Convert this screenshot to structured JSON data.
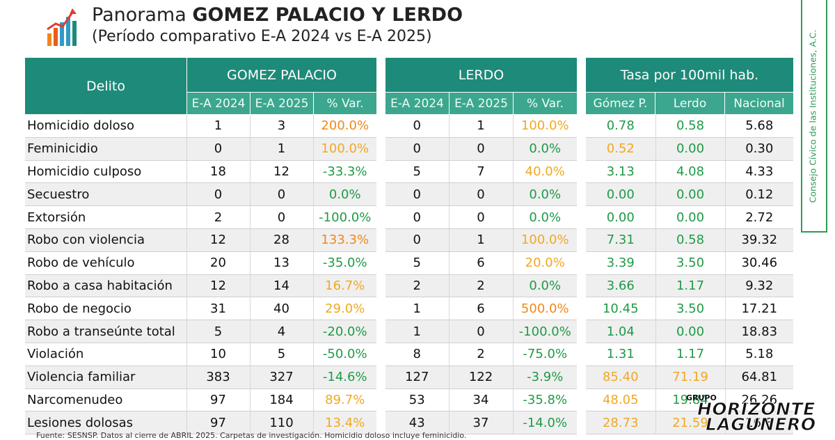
{
  "header": {
    "title_prefix": "Panorama",
    "title_bold": "GOMEZ PALACIO Y LERDO",
    "subtitle": "(Período comparativo E-A 2024 vs E-A 2025)"
  },
  "side_label": "Consejo Cívico de las Instituciones, A.C.",
  "table": {
    "delito_header": "Delito",
    "group_gomez": "GOMEZ PALACIO",
    "group_lerdo": "LERDO",
    "group_tasa": "Tasa por 100mil hab.",
    "sub_gomez": [
      "E-A 2024",
      "E-A 2025",
      "% Var."
    ],
    "sub_lerdo": [
      "E-A 2024",
      "E-A 2025",
      "% Var."
    ],
    "sub_tasa": [
      "Gómez P.",
      "Lerdo",
      "Nacional"
    ],
    "rows": [
      {
        "delito": "Homicidio doloso",
        "gp": [
          "1",
          "3",
          "200.0%"
        ],
        "le": [
          "0",
          "1",
          "100.0%"
        ],
        "tasa": [
          "0.78",
          "0.58",
          "5.68"
        ]
      },
      {
        "delito": "Feminicidio",
        "gp": [
          "0",
          "1",
          "100.0%"
        ],
        "le": [
          "0",
          "0",
          "0.0%"
        ],
        "tasa": [
          "0.52",
          "0.00",
          "0.30"
        ]
      },
      {
        "delito": "Homicidio culposo",
        "gp": [
          "18",
          "12",
          "-33.3%"
        ],
        "le": [
          "5",
          "7",
          "40.0%"
        ],
        "tasa": [
          "3.13",
          "4.08",
          "4.33"
        ]
      },
      {
        "delito": "Secuestro",
        "gp": [
          "0",
          "0",
          "0.0%"
        ],
        "le": [
          "0",
          "0",
          "0.0%"
        ],
        "tasa": [
          "0.00",
          "0.00",
          "0.12"
        ]
      },
      {
        "delito": "Extorsión",
        "gp": [
          "2",
          "0",
          "-100.0%"
        ],
        "le": [
          "0",
          "0",
          "0.0%"
        ],
        "tasa": [
          "0.00",
          "0.00",
          "2.72"
        ]
      },
      {
        "delito": "Robo con violencia",
        "gp": [
          "12",
          "28",
          "133.3%"
        ],
        "le": [
          "0",
          "1",
          "100.0%"
        ],
        "tasa": [
          "7.31",
          "0.58",
          "39.32"
        ]
      },
      {
        "delito": "Robo de vehículo",
        "gp": [
          "20",
          "13",
          "-35.0%"
        ],
        "le": [
          "5",
          "6",
          "20.0%"
        ],
        "tasa": [
          "3.39",
          "3.50",
          "30.46"
        ]
      },
      {
        "delito": "Robo a casa habitación",
        "gp": [
          "12",
          "14",
          "16.7%"
        ],
        "le": [
          "2",
          "2",
          "0.0%"
        ],
        "tasa": [
          "3.66",
          "1.17",
          "9.32"
        ]
      },
      {
        "delito": "Robo de negocio",
        "gp": [
          "31",
          "40",
          "29.0%"
        ],
        "le": [
          "1",
          "6",
          "500.0%"
        ],
        "tasa": [
          "10.45",
          "3.50",
          "17.21"
        ]
      },
      {
        "delito": "Robo a transeúnte total",
        "gp": [
          "5",
          "4",
          "-20.0%"
        ],
        "le": [
          "1",
          "0",
          "-100.0%"
        ],
        "tasa": [
          "1.04",
          "0.00",
          "18.83"
        ]
      },
      {
        "delito": "Violación",
        "gp": [
          "10",
          "5",
          "-50.0%"
        ],
        "le": [
          "8",
          "2",
          "-75.0%"
        ],
        "tasa": [
          "1.31",
          "1.17",
          "5.18"
        ]
      },
      {
        "delito": "Violencia familiar",
        "gp": [
          "383",
          "327",
          "-14.6%"
        ],
        "le": [
          "127",
          "122",
          "-3.9%"
        ],
        "tasa": [
          "85.40",
          "71.19",
          "64.81"
        ]
      },
      {
        "delito": "Narcomenudeo",
        "gp": [
          "97",
          "184",
          "89.7%"
        ],
        "le": [
          "53",
          "34",
          "-35.8%"
        ],
        "tasa": [
          "48.05",
          "19.84",
          "26.26"
        ]
      },
      {
        "delito": "Lesiones dolosas",
        "gp": [
          "97",
          "110",
          "13.4%"
        ],
        "le": [
          "43",
          "37",
          "-14.0%"
        ],
        "tasa": [
          "28.73",
          "21.59",
          "16.8"
        ]
      }
    ]
  },
  "footer": "Fuente: SESNSP. Datos al cierre de ABRIL 2025. Carpetas de investigación. Homicidio doloso incluye feminicidio.",
  "watermark": {
    "grupo": "GRUPO",
    "horizonte": "HORIZONTE",
    "lagunero": "LAGUNERO"
  },
  "colors": {
    "header_dark": "#1e8a79",
    "header_light": "#3da68e",
    "increase": "#f0a823",
    "decrease": "#1f9a46",
    "strong_increase": "#f0881a",
    "frame_green": "#2e9b55"
  }
}
